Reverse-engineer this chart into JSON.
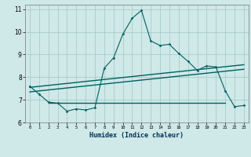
{
  "xlabel": "Humidex (Indice chaleur)",
  "xlim": [
    -0.5,
    23.5
  ],
  "ylim": [
    6.0,
    11.2
  ],
  "yticks": [
    6,
    7,
    8,
    9,
    10,
    11
  ],
  "xticks": [
    0,
    1,
    2,
    3,
    4,
    5,
    6,
    7,
    8,
    9,
    10,
    11,
    12,
    13,
    14,
    15,
    16,
    17,
    18,
    19,
    20,
    21,
    22,
    23
  ],
  "bg_color": "#cfe8e8",
  "grid_color": "#a0c8c0",
  "line_color": "#006060",
  "main_line": {
    "x": [
      0,
      1,
      2,
      3,
      4,
      5,
      6,
      7,
      8,
      9,
      10,
      11,
      12,
      13,
      14,
      15,
      16,
      17,
      18,
      19,
      20,
      21,
      22,
      23
    ],
    "y": [
      7.6,
      7.25,
      6.9,
      6.85,
      6.5,
      6.6,
      6.55,
      6.65,
      8.4,
      8.85,
      9.9,
      10.6,
      10.95,
      9.6,
      9.4,
      9.45,
      9.05,
      8.7,
      8.3,
      8.5,
      8.45,
      7.4,
      6.7,
      6.75
    ]
  },
  "reg_line1": {
    "x": [
      0,
      23
    ],
    "y": [
      7.55,
      8.55
    ]
  },
  "reg_line2": {
    "x": [
      0,
      23
    ],
    "y": [
      7.35,
      8.35
    ]
  },
  "horiz_line": {
    "x": [
      2,
      21
    ],
    "y": [
      6.88,
      6.88
    ]
  }
}
